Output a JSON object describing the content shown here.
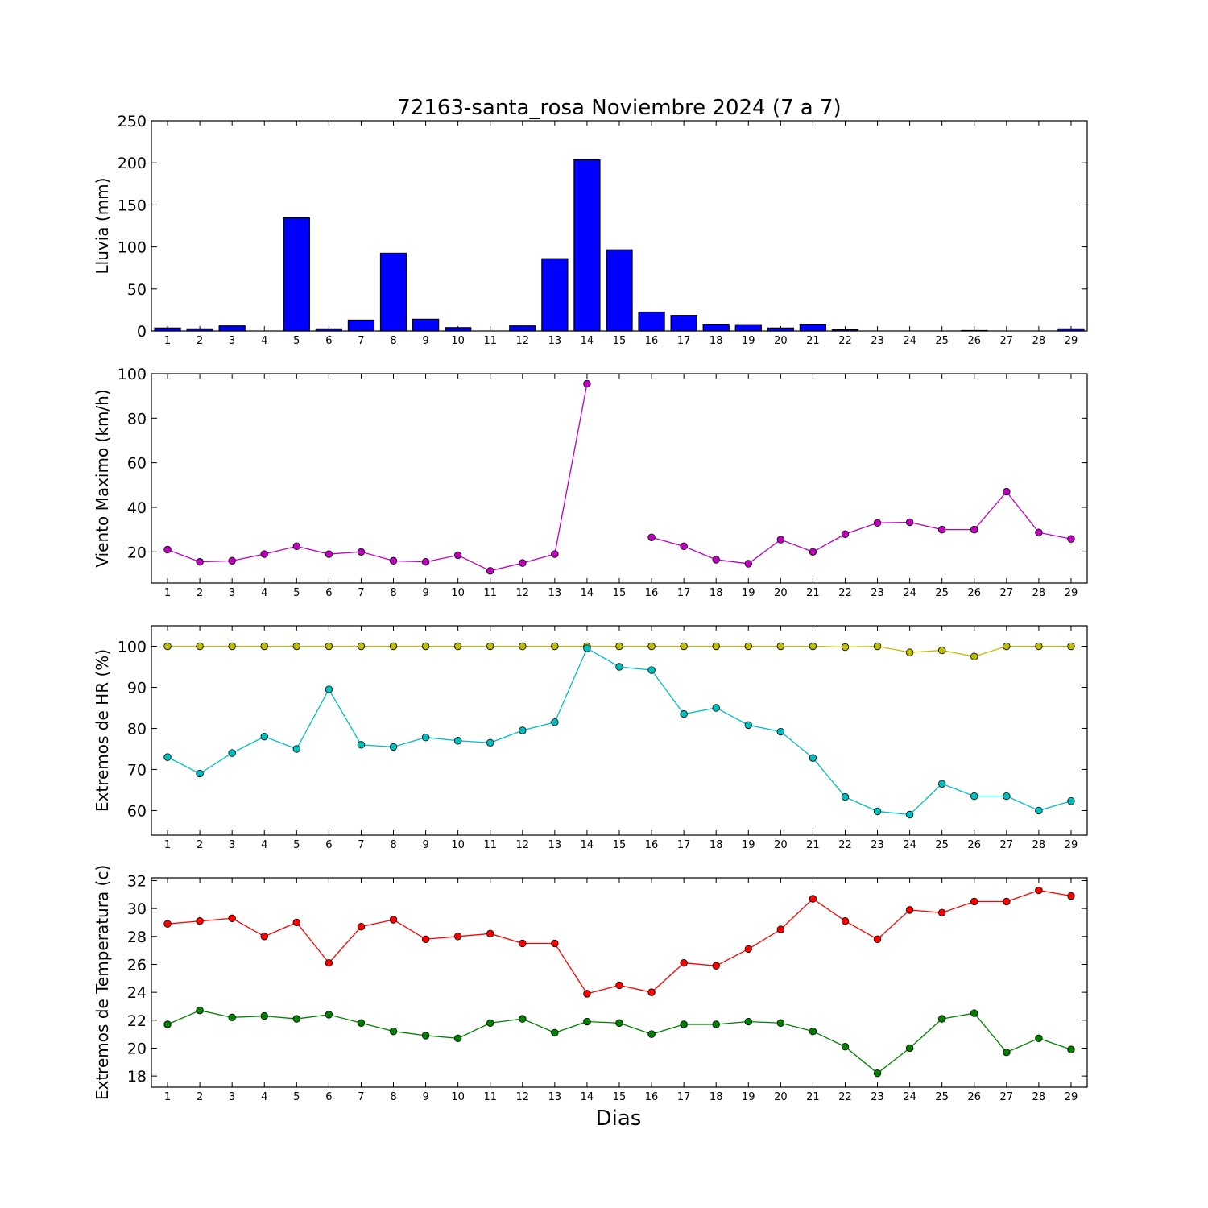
{
  "chart_data": [
    {
      "type": "bar",
      "title": "72163-santa_rosa Noviembre 2024  (7 a 7)",
      "ylabel": "Lluvia (mm)",
      "xlabel": "",
      "categories": [
        "1",
        "2",
        "3",
        "4",
        "5",
        "6",
        "7",
        "8",
        "9",
        "10",
        "11",
        "12",
        "13",
        "14",
        "15",
        "16",
        "17",
        "18",
        "19",
        "20",
        "21",
        "22",
        "23",
        "24",
        "25",
        "26",
        "27",
        "28",
        "29"
      ],
      "ylim": [
        0,
        250
      ],
      "yticks": [
        0,
        50,
        100,
        150,
        200,
        250
      ],
      "grid": false,
      "color": "#0000ff",
      "values": [
        3.5,
        2.5,
        6,
        0,
        134.5,
        2.5,
        13,
        92.5,
        14,
        4,
        0,
        6,
        86,
        203.5,
        96.5,
        22.5,
        18.5,
        8,
        7.5,
        3.5,
        8,
        1.5,
        0,
        0,
        0,
        0.5,
        0,
        0,
        2.5
      ]
    },
    {
      "type": "line",
      "ylabel": "Viento Maximo (km/h)",
      "xlabel": "",
      "x": [
        1,
        2,
        3,
        4,
        5,
        6,
        7,
        8,
        9,
        10,
        11,
        12,
        13,
        14,
        15,
        16,
        17,
        18,
        19,
        20,
        21,
        22,
        23,
        24,
        25,
        26,
        27,
        28,
        29
      ],
      "ylim": [
        6,
        100
      ],
      "yticks": [
        20,
        40,
        60,
        80,
        100
      ],
      "grid": false,
      "series": [
        {
          "color": "#bf00bf",
          "values": [
            21,
            15.5,
            16,
            19,
            22.5,
            19,
            20,
            16,
            15.5,
            18.5,
            11.5,
            15,
            19,
            95.5,
            null,
            26.5,
            22.5,
            16.5,
            14.7,
            25.5,
            20,
            28,
            33,
            33.3,
            30,
            30,
            47,
            28.7,
            25.8
          ]
        }
      ]
    },
    {
      "type": "line",
      "ylabel": "Extremos de HR (%)",
      "xlabel": "",
      "x": [
        1,
        2,
        3,
        4,
        5,
        6,
        7,
        8,
        9,
        10,
        11,
        12,
        13,
        14,
        15,
        16,
        17,
        18,
        19,
        20,
        21,
        22,
        23,
        24,
        25,
        26,
        27,
        28,
        29
      ],
      "ylim": [
        54,
        105
      ],
      "yticks": [
        60,
        70,
        80,
        90,
        100
      ],
      "grid": false,
      "series": [
        {
          "color": "#bfbf00",
          "values": [
            100,
            100,
            100,
            100,
            100,
            100,
            100,
            100,
            100,
            100,
            100,
            100,
            100,
            100,
            100,
            100,
            100,
            100,
            100,
            100,
            100,
            99.8,
            100,
            98.5,
            99,
            97.5,
            100,
            100,
            100
          ]
        },
        {
          "color": "#00bfbf",
          "values": [
            73,
            69,
            74,
            78,
            75,
            89.5,
            76,
            75.5,
            77.8,
            77,
            76.5,
            79.5,
            81.5,
            99.5,
            95,
            94.2,
            83.5,
            85,
            80.8,
            79.2,
            72.8,
            63.3,
            59.8,
            59,
            66.5,
            63.5,
            63.5,
            60,
            62.3
          ]
        }
      ]
    },
    {
      "type": "line",
      "ylabel": "Extremos de Temperatura (c)",
      "xlabel": "Dias",
      "x": [
        1,
        2,
        3,
        4,
        5,
        6,
        7,
        8,
        9,
        10,
        11,
        12,
        13,
        14,
        15,
        16,
        17,
        18,
        19,
        20,
        21,
        22,
        23,
        24,
        25,
        26,
        27,
        28,
        29
      ],
      "ylim": [
        17.2,
        32.2
      ],
      "yticks": [
        18,
        20,
        22,
        24,
        26,
        28,
        30,
        32
      ],
      "grid": false,
      "series": [
        {
          "color": "#ff0000",
          "values": [
            28.9,
            29.1,
            29.3,
            28,
            29,
            26.1,
            28.7,
            29.2,
            27.8,
            28,
            28.2,
            27.5,
            27.5,
            23.9,
            24.5,
            24,
            26.1,
            25.9,
            27.1,
            28.5,
            30.7,
            29.1,
            27.8,
            29.9,
            29.7,
            30.5,
            30.5,
            31.3,
            30.9
          ]
        },
        {
          "color": "#008000",
          "values": [
            21.7,
            22.7,
            22.2,
            22.3,
            22.1,
            22.4,
            21.8,
            21.2,
            20.9,
            20.7,
            21.8,
            22.1,
            21.1,
            21.9,
            21.8,
            21,
            21.7,
            21.7,
            21.9,
            21.8,
            21.2,
            20.1,
            18.2,
            20,
            22.1,
            22.5,
            19.7,
            20.7,
            19.9
          ]
        }
      ]
    }
  ]
}
